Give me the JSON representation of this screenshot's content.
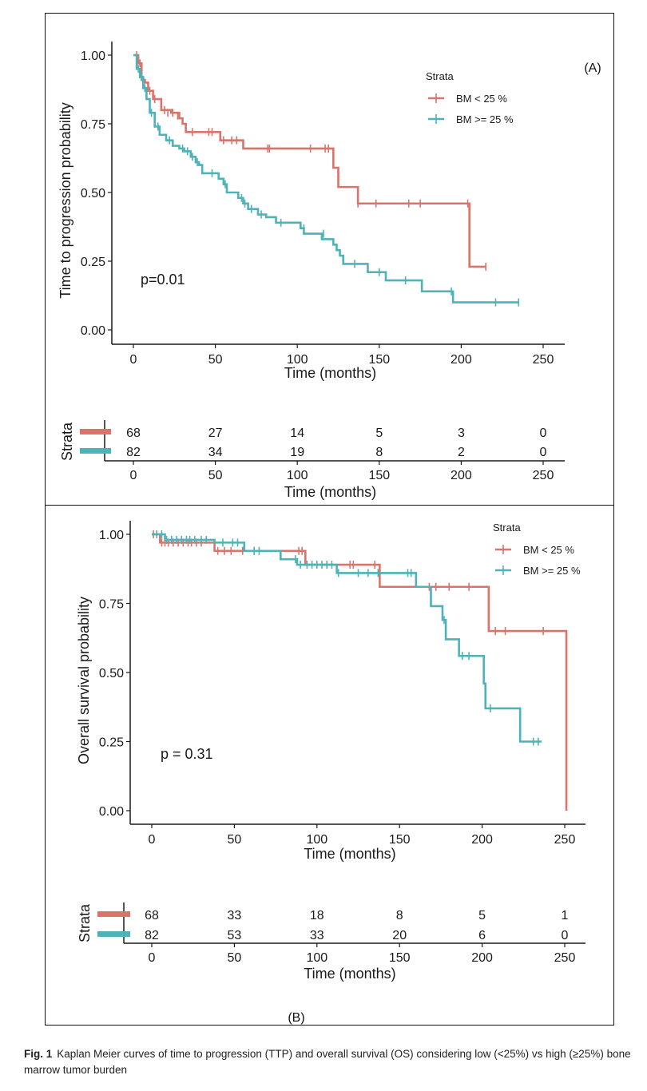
{
  "figure": {
    "caption_label": "Fig. 1",
    "caption_text": "Kaplan Meier curves of time to progression (TTP) and overall survival (OS) considering low (<25%) vs high (≥25%) bone marrow tumor burden"
  },
  "colors": {
    "low": "#D9746A",
    "high": "#4DB3B8",
    "axis": "#1a1a1a"
  },
  "chart_data": [
    {
      "type": "line",
      "subtype": "kaplan-meier-step",
      "panel_label": "(A)",
      "title": "",
      "xlabel": "Time (months)",
      "ylabel": "Time to progression probability",
      "xlim": [
        0,
        250
      ],
      "ylim": [
        0,
        1
      ],
      "x_ticks": [
        "0",
        "50",
        "100",
        "150",
        "200",
        "250"
      ],
      "y_ticks": [
        "0.00",
        "0.25",
        "0.50",
        "0.75",
        "1.00"
      ],
      "grid": false,
      "annotation": "p=0.01",
      "legend": {
        "title": "Strata",
        "position": "top-right",
        "entries": [
          "BM < 25 %",
          "BM >= 25 %"
        ]
      },
      "series": [
        {
          "name": "BM < 25 %",
          "color_key": "low",
          "steps": [
            [
              0,
              1.0
            ],
            [
              3,
              0.97
            ],
            [
              5,
              0.91
            ],
            [
              7,
              0.9
            ],
            [
              9,
              0.87
            ],
            [
              12,
              0.84
            ],
            [
              17,
              0.8
            ],
            [
              23,
              0.79
            ],
            [
              28,
              0.77
            ],
            [
              30,
              0.75
            ],
            [
              32,
              0.72
            ],
            [
              50,
              0.72
            ],
            [
              53,
              0.69
            ],
            [
              65,
              0.69
            ],
            [
              67,
              0.66
            ],
            [
              120,
              0.66
            ],
            [
              122,
              0.59
            ],
            [
              125,
              0.52
            ],
            [
              136,
              0.52
            ],
            [
              137,
              0.46
            ],
            [
              204,
              0.46
            ],
            [
              205,
              0.23
            ],
            [
              215,
              0.23
            ]
          ],
          "censors": [
            [
              2,
              1.0
            ],
            [
              4,
              0.97
            ],
            [
              6,
              0.91
            ],
            [
              10,
              0.87
            ],
            [
              13,
              0.84
            ],
            [
              19,
              0.8
            ],
            [
              21,
              0.79
            ],
            [
              24,
              0.79
            ],
            [
              27,
              0.78
            ],
            [
              36,
              0.72
            ],
            [
              46,
              0.72
            ],
            [
              48,
              0.72
            ],
            [
              55,
              0.69
            ],
            [
              60,
              0.69
            ],
            [
              63,
              0.69
            ],
            [
              82,
              0.66
            ],
            [
              83,
              0.66
            ],
            [
              108,
              0.66
            ],
            [
              117,
              0.66
            ],
            [
              119,
              0.66
            ],
            [
              137,
              0.46
            ],
            [
              148,
              0.46
            ],
            [
              168,
              0.46
            ],
            [
              175,
              0.46
            ],
            [
              204,
              0.46
            ],
            [
              215,
              0.23
            ]
          ]
        },
        {
          "name": "BM >= 25 %",
          "color_key": "high",
          "steps": [
            [
              0,
              1.0
            ],
            [
              2,
              0.95
            ],
            [
              4,
              0.92
            ],
            [
              6,
              0.88
            ],
            [
              8,
              0.84
            ],
            [
              10,
              0.79
            ],
            [
              13,
              0.74
            ],
            [
              16,
              0.71
            ],
            [
              20,
              0.69
            ],
            [
              24,
              0.67
            ],
            [
              28,
              0.66
            ],
            [
              31,
              0.65
            ],
            [
              35,
              0.63
            ],
            [
              38,
              0.61
            ],
            [
              40,
              0.6
            ],
            [
              42,
              0.57
            ],
            [
              52,
              0.55
            ],
            [
              55,
              0.53
            ],
            [
              57,
              0.5
            ],
            [
              64,
              0.48
            ],
            [
              67,
              0.46
            ],
            [
              70,
              0.44
            ],
            [
              76,
              0.42
            ],
            [
              81,
              0.41
            ],
            [
              87,
              0.39
            ],
            [
              102,
              0.37
            ],
            [
              104,
              0.35
            ],
            [
              113,
              0.35
            ],
            [
              115,
              0.33
            ],
            [
              122,
              0.31
            ],
            [
              124,
              0.29
            ],
            [
              126,
              0.27
            ],
            [
              128,
              0.24
            ],
            [
              141,
              0.24
            ],
            [
              143,
              0.21
            ],
            [
              152,
              0.21
            ],
            [
              154,
              0.18
            ],
            [
              175,
              0.18
            ],
            [
              176,
              0.14
            ],
            [
              194,
              0.14
            ],
            [
              195,
              0.1
            ],
            [
              235,
              0.1
            ]
          ],
          "censors": [
            [
              3,
              0.95
            ],
            [
              5,
              0.92
            ],
            [
              7,
              0.88
            ],
            [
              11,
              0.79
            ],
            [
              15,
              0.74
            ],
            [
              22,
              0.69
            ],
            [
              30,
              0.66
            ],
            [
              33,
              0.65
            ],
            [
              36,
              0.63
            ],
            [
              39,
              0.61
            ],
            [
              48,
              0.57
            ],
            [
              56,
              0.53
            ],
            [
              66,
              0.48
            ],
            [
              68,
              0.46
            ],
            [
              72,
              0.44
            ],
            [
              78,
              0.42
            ],
            [
              90,
              0.39
            ],
            [
              104,
              0.37
            ],
            [
              116,
              0.35
            ],
            [
              135,
              0.24
            ],
            [
              150,
              0.21
            ],
            [
              166,
              0.18
            ],
            [
              194,
              0.14
            ],
            [
              221,
              0.1
            ],
            [
              235,
              0.1
            ]
          ]
        }
      ],
      "risk_table": {
        "title": "Strata",
        "xlabel": "Time (months)",
        "times": [
          "0",
          "50",
          "100",
          "150",
          "200",
          "250"
        ],
        "rows": [
          {
            "name": "BM < 25 %",
            "color_key": "low",
            "counts": [
              "68",
              "27",
              "14",
              "5",
              "3",
              "0"
            ]
          },
          {
            "name": "BM >= 25 %",
            "color_key": "high",
            "counts": [
              "82",
              "34",
              "19",
              "8",
              "2",
              "0"
            ]
          }
        ]
      }
    },
    {
      "type": "line",
      "subtype": "kaplan-meier-step",
      "panel_label": "(B)",
      "title": "",
      "xlabel": "Time (months)",
      "ylabel": "Overall survival probability",
      "xlim": [
        0,
        250
      ],
      "ylim": [
        0,
        1
      ],
      "x_ticks": [
        "0",
        "50",
        "100",
        "150",
        "200",
        "250"
      ],
      "y_ticks": [
        "0.00",
        "0.25",
        "0.50",
        "0.75",
        "1.00"
      ],
      "grid": false,
      "annotation": "p = 0.31",
      "legend": {
        "title": "Strata",
        "position": "top-right",
        "entries": [
          "BM < 25 %",
          "BM >= 25 %"
        ]
      },
      "series": [
        {
          "name": "BM < 25 %",
          "color_key": "low",
          "steps": [
            [
              0,
              1.0
            ],
            [
              5,
              0.97
            ],
            [
              37,
              0.97
            ],
            [
              38,
              0.94
            ],
            [
              92,
              0.94
            ],
            [
              93,
              0.89
            ],
            [
              137,
              0.89
            ],
            [
              138,
              0.81
            ],
            [
              203,
              0.81
            ],
            [
              204,
              0.65
            ],
            [
              251,
              0.65
            ],
            [
              251,
              0.0
            ]
          ],
          "censors": [
            [
              1,
              1.0
            ],
            [
              6,
              0.97
            ],
            [
              8,
              0.97
            ],
            [
              10,
              0.97
            ],
            [
              13,
              0.97
            ],
            [
              16,
              0.97
            ],
            [
              19,
              0.97
            ],
            [
              22,
              0.97
            ],
            [
              24,
              0.97
            ],
            [
              27,
              0.97
            ],
            [
              30,
              0.97
            ],
            [
              40,
              0.94
            ],
            [
              44,
              0.94
            ],
            [
              48,
              0.94
            ],
            [
              55,
              0.94
            ],
            [
              62,
              0.94
            ],
            [
              89,
              0.94
            ],
            [
              91,
              0.94
            ],
            [
              120,
              0.89
            ],
            [
              122,
              0.89
            ],
            [
              135,
              0.89
            ],
            [
              168,
              0.81
            ],
            [
              172,
              0.81
            ],
            [
              180,
              0.81
            ],
            [
              192,
              0.81
            ],
            [
              208,
              0.65
            ],
            [
              214,
              0.65
            ],
            [
              237,
              0.65
            ]
          ]
        },
        {
          "name": "BM >= 25 %",
          "color_key": "high",
          "steps": [
            [
              0,
              1.0
            ],
            [
              8,
              0.98
            ],
            [
              37,
              0.98
            ],
            [
              38,
              0.97
            ],
            [
              54,
              0.97
            ],
            [
              56,
              0.94
            ],
            [
              77,
              0.94
            ],
            [
              78,
              0.91
            ],
            [
              87,
              0.91
            ],
            [
              88,
              0.89
            ],
            [
              111,
              0.89
            ],
            [
              112,
              0.86
            ],
            [
              159,
              0.86
            ],
            [
              160,
              0.81
            ],
            [
              168,
              0.81
            ],
            [
              169,
              0.74
            ],
            [
              175,
              0.74
            ],
            [
              176,
              0.69
            ],
            [
              178,
              0.62
            ],
            [
              185,
              0.62
            ],
            [
              186,
              0.56
            ],
            [
              200,
              0.56
            ],
            [
              201,
              0.46
            ],
            [
              202,
              0.37
            ],
            [
              222,
              0.37
            ],
            [
              223,
              0.25
            ],
            [
              236,
              0.25
            ]
          ],
          "censors": [
            [
              3,
              1.0
            ],
            [
              6,
              1.0
            ],
            [
              9,
              0.98
            ],
            [
              12,
              0.98
            ],
            [
              15,
              0.98
            ],
            [
              18,
              0.98
            ],
            [
              21,
              0.98
            ],
            [
              23,
              0.98
            ],
            [
              26,
              0.98
            ],
            [
              30,
              0.98
            ],
            [
              33,
              0.98
            ],
            [
              43,
              0.97
            ],
            [
              49,
              0.97
            ],
            [
              52,
              0.97
            ],
            [
              62,
              0.94
            ],
            [
              65,
              0.94
            ],
            [
              87,
              0.91
            ],
            [
              90,
              0.89
            ],
            [
              94,
              0.89
            ],
            [
              97,
              0.89
            ],
            [
              100,
              0.89
            ],
            [
              103,
              0.89
            ],
            [
              106,
              0.89
            ],
            [
              109,
              0.89
            ],
            [
              113,
              0.86
            ],
            [
              125,
              0.86
            ],
            [
              131,
              0.86
            ],
            [
              137,
              0.86
            ],
            [
              155,
              0.86
            ],
            [
              157,
              0.86
            ],
            [
              177,
              0.69
            ],
            [
              188,
              0.56
            ],
            [
              192,
              0.56
            ],
            [
              205,
              0.37
            ],
            [
              231,
              0.25
            ],
            [
              234,
              0.25
            ]
          ]
        }
      ],
      "risk_table": {
        "title": "Strata",
        "xlabel": "Time (months)",
        "times": [
          "0",
          "50",
          "100",
          "150",
          "200",
          "250"
        ],
        "rows": [
          {
            "name": "BM < 25 %",
            "color_key": "low",
            "counts": [
              "68",
              "33",
              "18",
              "8",
              "5",
              "1"
            ]
          },
          {
            "name": "BM >= 25 %",
            "color_key": "high",
            "counts": [
              "82",
              "53",
              "33",
              "20",
              "6",
              "0"
            ]
          }
        ]
      }
    }
  ]
}
